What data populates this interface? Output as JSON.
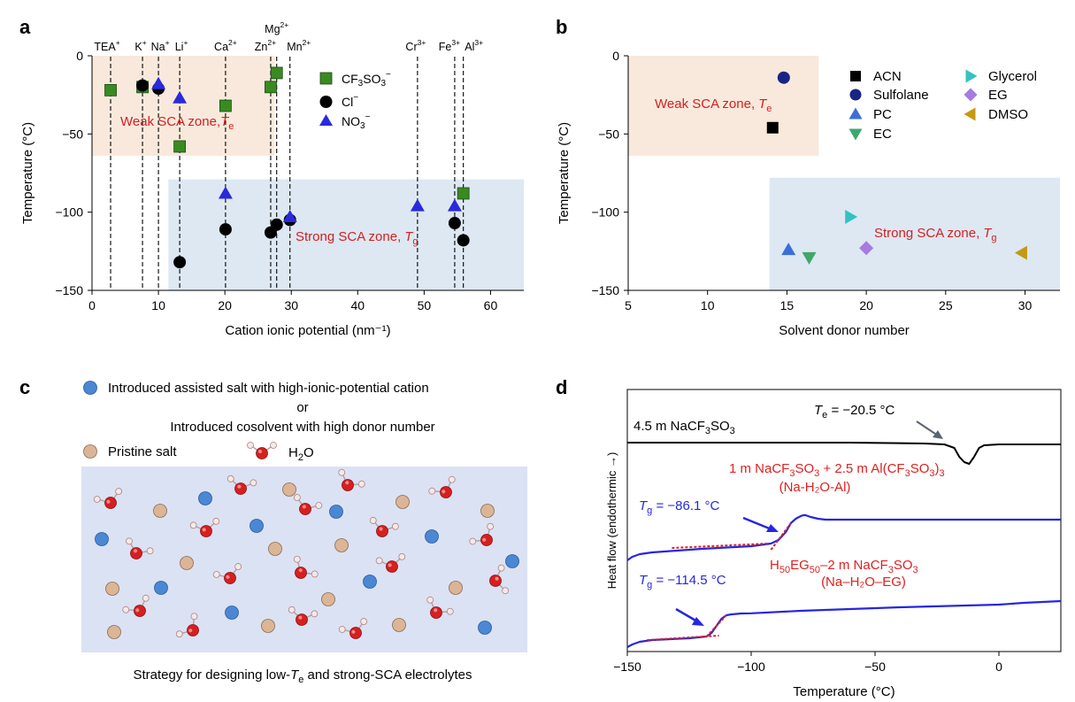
{
  "colors": {
    "green": "#3a8a22",
    "black": "#000000",
    "blue": "#2a2adc",
    "red": "#d61e1e",
    "weak_zone": "#f9e9dc",
    "strong_zone": "#dde8f3",
    "panel_c_bg": "#dbe2f3",
    "salt_blue": "#4a88d4",
    "salt_tan": "#dcb597",
    "dsc_black": "#000000",
    "dsc_blue": "#2626e0",
    "dsc_red": "#e02020"
  },
  "chart_data": [
    {
      "panel": "a",
      "type": "scatter",
      "xlabel": "Cation ionic potential (nm⁻¹)",
      "ylabel": "Temperature (°C)",
      "xlim": [
        0,
        65
      ],
      "ylim": [
        -150,
        0
      ],
      "xticks": [
        0,
        10,
        20,
        30,
        40,
        50,
        60
      ],
      "yticks": [
        0,
        -50,
        -100,
        -150
      ],
      "zones": [
        {
          "label": "Weak SCA zone, ",
          "sym": "T",
          "sub": "e",
          "x": [
            0,
            27.5
          ],
          "y": [
            -64,
            0
          ]
        },
        {
          "label": "Strong SCA zone, ",
          "sym": "T",
          "sub": "g",
          "x": [
            11.5,
            65
          ],
          "y": [
            -150,
            -79
          ]
        }
      ],
      "cations": [
        {
          "name": "TEA",
          "sup": "+",
          "x": 2.8
        },
        {
          "name": "K",
          "sup": "+",
          "x": 7.6
        },
        {
          "name": "Na",
          "sup": "+",
          "x": 10.0
        },
        {
          "name": "Li",
          "sup": "+",
          "x": 13.2
        },
        {
          "name": "Ca",
          "sup": "2+",
          "x": 20.1
        },
        {
          "name": "Zn",
          "sup": "2+",
          "x": 26.9
        },
        {
          "name": "Mg",
          "sup": "2+",
          "x": 27.8
        },
        {
          "name": "Mn",
          "sup": "2+",
          "x": 29.8
        },
        {
          "name": "Cr",
          "sup": "3+",
          "x": 49.0
        },
        {
          "name": "Fe",
          "sup": "3+",
          "x": 54.6
        },
        {
          "name": "Al",
          "sup": "3+",
          "x": 55.9
        }
      ],
      "legend": [
        {
          "name": "CF",
          "sub": "3",
          "rest": "SO",
          "sub2": "3",
          "sup": "−",
          "marker": "square"
        },
        {
          "name": "Cl",
          "sup": "−",
          "marker": "circle"
        },
        {
          "name": "NO",
          "sub": "3",
          "sup": "−",
          "marker": "triangle"
        }
      ],
      "series": [
        {
          "name": "CF3SO3-",
          "marker": "square",
          "x": [
            2.8,
            7.6,
            13.2,
            20.1,
            26.9,
            27.8,
            55.9
          ],
          "y": [
            -22,
            -20,
            -58,
            -32,
            -20,
            -11,
            -88
          ]
        },
        {
          "name": "Cl-",
          "marker": "circle",
          "x": [
            7.6,
            10.0,
            13.2,
            20.1,
            26.9,
            27.8,
            29.8,
            54.6,
            55.9
          ],
          "y": [
            -19,
            -21,
            -132,
            -111,
            -113,
            -108,
            -105,
            -107,
            -118
          ]
        },
        {
          "name": "NO3-",
          "marker": "triangle",
          "x": [
            10.0,
            13.2,
            20.1,
            29.8,
            49.0,
            54.6
          ],
          "y": [
            -18,
            -27,
            -88,
            -103,
            -96,
            -96
          ]
        }
      ]
    },
    {
      "panel": "b",
      "type": "scatter",
      "xlabel": "Solvent donor number",
      "ylabel": "Temperature (°C)",
      "xlim": [
        5,
        32.2
      ],
      "ylim": [
        -150,
        0
      ],
      "xticks": [
        5,
        10,
        15,
        20,
        25,
        30
      ],
      "yticks": [
        0,
        -50,
        -100,
        -150
      ],
      "zones": [
        {
          "label": "Weak SCA zone, ",
          "sym": "T",
          "sub": "e",
          "x": [
            5,
            17.0
          ],
          "y": [
            -64,
            0
          ]
        },
        {
          "label": "Strong SCA zone, ",
          "sym": "T",
          "sub": "g",
          "x": [
            13.9,
            32.2
          ],
          "y": [
            -150,
            -78
          ]
        }
      ],
      "series": [
        {
          "name": "ACN",
          "marker": "square",
          "color": "#000000",
          "x": [
            14.1
          ],
          "y": [
            -46
          ]
        },
        {
          "name": "Sulfolane",
          "marker": "circle",
          "color": "#1a2485",
          "x": [
            14.8
          ],
          "y": [
            -14
          ]
        },
        {
          "name": "PC",
          "marker": "triangle-up",
          "color": "#3a6fd8",
          "x": [
            15.1
          ],
          "y": [
            -124
          ]
        },
        {
          "name": "EC",
          "marker": "triangle-down",
          "color": "#3ea86a",
          "x": [
            16.4
          ],
          "y": [
            -129
          ]
        },
        {
          "name": "Glycerol",
          "marker": "triangle-right",
          "color": "#33c2c2",
          "x": [
            19.0
          ],
          "y": [
            -103
          ]
        },
        {
          "name": "EG",
          "marker": "diamond",
          "color": "#a77be0",
          "x": [
            20.0
          ],
          "y": [
            -123
          ]
        },
        {
          "name": "DMSO",
          "marker": "triangle-left",
          "color": "#c49a12",
          "x": [
            29.8
          ],
          "y": [
            -126
          ]
        }
      ]
    },
    {
      "panel": "d",
      "type": "line",
      "xlabel": "Temperature (°C)",
      "ylabel": "Heat flow (endothermic →)",
      "xlim": [
        -150,
        25
      ],
      "xticks": [
        -150,
        -100,
        -50,
        0
      ],
      "series": [
        {
          "name": "4.5 m NaCF3SO3",
          "color": "#000000",
          "x": [
            -150,
            -140,
            -100,
            -60,
            -30,
            -22,
            -18,
            -16,
            -14,
            -12,
            -10,
            -8,
            -6,
            0,
            10,
            25
          ],
          "y": [
            102,
            102,
            102,
            102,
            101,
            100,
            96,
            86,
            80,
            78,
            86,
            96,
            99,
            100,
            100,
            100
          ]
        },
        {
          "name": "Na-H2O-Al",
          "color": "#2626e0",
          "x": [
            -150,
            -148,
            -145,
            -140,
            -120,
            -100,
            -92,
            -89,
            -86,
            -84,
            -82,
            -80,
            -79,
            -78,
            -76,
            -73,
            -70,
            -60,
            -40,
            -20,
            0,
            25
          ],
          "y": [
            30,
            34,
            37,
            39,
            43,
            46,
            49,
            53,
            62,
            72,
            77,
            80,
            81,
            81,
            79,
            77,
            76,
            76,
            76,
            76,
            76,
            76
          ]
        },
        {
          "name": "Na-H2O-EG",
          "color": "#2626e0",
          "x": [
            -150,
            -148,
            -145,
            -140,
            -125,
            -118,
            -116,
            -114,
            -112,
            -110,
            -108,
            -104,
            -100,
            -80,
            -60,
            -40,
            -20,
            0,
            10,
            25
          ],
          "y": [
            -40,
            -37,
            -34,
            -32,
            -30,
            -28,
            -24,
            -16,
            -8,
            -4,
            -3,
            -2,
            -1.8,
            1,
            3,
            5,
            6.5,
            8,
            10,
            12
          ]
        }
      ]
    }
  ],
  "panel_labels": {
    "a": "a",
    "b": "b",
    "c": "c",
    "d": "d"
  },
  "panel_a": {
    "weak_label": "Weak SCA zone,",
    "weak_sym": "T",
    "weak_sub": "e",
    "strong_label": "Strong SCA zone,",
    "strong_sym": "T",
    "strong_sub": "g"
  },
  "panel_b": {
    "weak_label": "Weak SCA zone,",
    "weak_sym": "T",
    "weak_sub": "e",
    "strong_label": "Strong SCA zone,",
    "strong_sym": "T",
    "strong_sub": "g"
  },
  "panel_c": {
    "line1": "Introduced assisted salt with high-ionic-potential cation",
    "line2": "or",
    "line3": "Introduced cosolvent with high donor number",
    "pristine": "Pristine salt",
    "water": "H",
    "water_sub": "2",
    "water_rest": "O",
    "caption_pre": "Strategy for designing low-",
    "caption_sym": "T",
    "caption_sub": "e",
    "caption_post": " and strong-SCA electrolytes"
  },
  "panel_d": {
    "black_label_a": "4.5 m NaCF",
    "black_label_sub": "3",
    "black_label_b": "SO",
    "black_label_sub2": "3",
    "te_sym": "T",
    "te_sub": "e",
    "te_val": " = −20.5 °C",
    "al_line1_a": "1 m NaCF",
    "al_line1_b": "SO",
    "al_line1_c": " + 2.5 m Al(CF",
    "al_line1_d": "SO",
    "al_line1_e": ")",
    "sub3": "3",
    "al_line2": "(Na-H₂O-Al)",
    "tg1_sym": "T",
    "tg1_sub": "g",
    "tg1_val": " = −86.1 °C",
    "eg_line1_a": "H",
    "eg_line1_sub1": "50",
    "eg_line1_b": "EG",
    "eg_line1_sub2": "50",
    "eg_line1_c": "–2 m NaCF",
    "eg_line1_d": "SO",
    "eg_line2": "(Na–H₂O–EG)",
    "tg2_sym": "T",
    "tg2_sub": "g",
    "tg2_val": " = −114.5 °C"
  }
}
